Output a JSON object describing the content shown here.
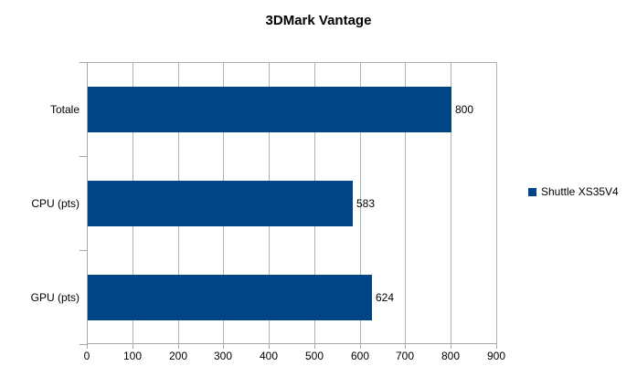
{
  "chart_data": {
    "type": "bar",
    "orientation": "horizontal",
    "title": "3DMark Vantage",
    "categories": [
      "Totale",
      "CPU (pts)",
      "GPU (pts)"
    ],
    "series": [
      {
        "name": "Shuttle XS35V4",
        "values": [
          800,
          583,
          624
        ]
      }
    ],
    "value_labels": [
      "800",
      "583",
      "624"
    ],
    "xlabel": "",
    "ylabel": "",
    "xlim": [
      0,
      900
    ],
    "xticks": [
      0,
      100,
      200,
      300,
      400,
      500,
      600,
      700,
      800,
      900
    ],
    "grid": "vertical-only",
    "legend_position": "right",
    "colors": {
      "bar": "#004586",
      "gridline": "#b0b0b0",
      "axis": "#a6a6a6",
      "text": "#000000",
      "background": "#ffffff"
    }
  },
  "legend": {
    "label": "Shuttle XS35V4"
  }
}
